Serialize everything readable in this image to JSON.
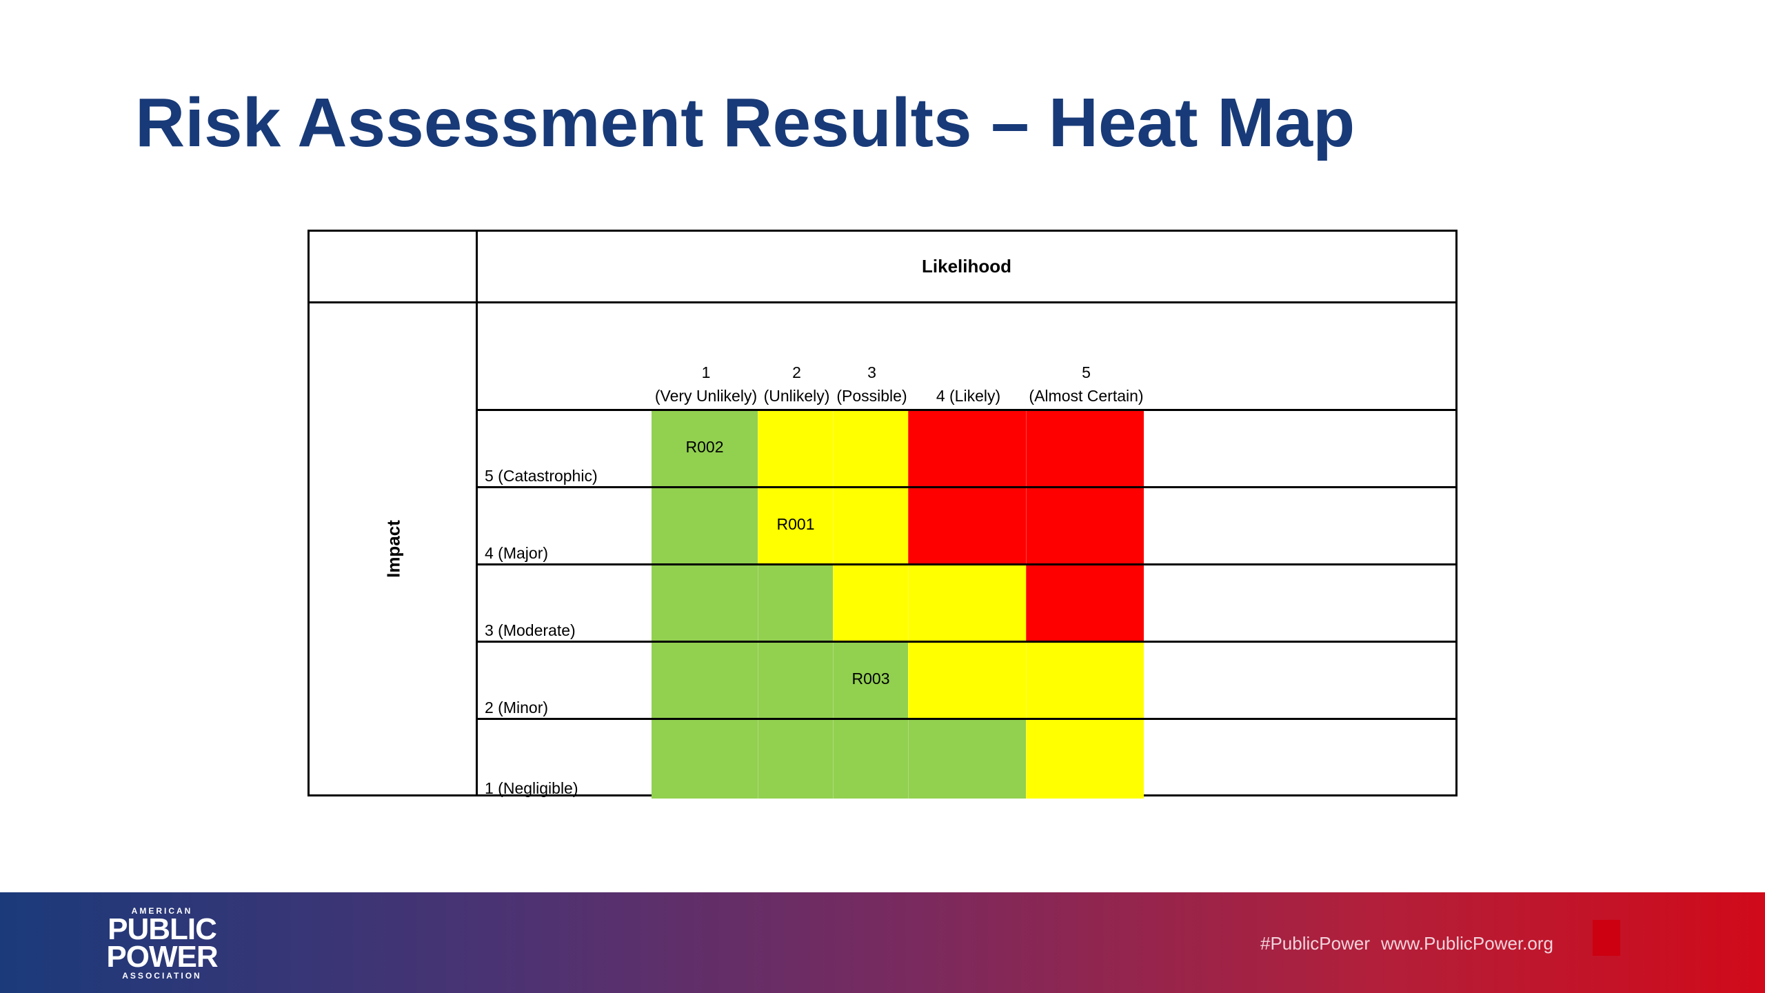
{
  "slide": {
    "title": "Risk Assessment Results – Heat Map"
  },
  "heat_map": {
    "column_axis_label": "Likelihood",
    "row_axis_label": "Impact",
    "columns": [
      {
        "num": "1",
        "desc": "(Very Unlikely)"
      },
      {
        "num": "",
        "desc": "2 (Unlikely)"
      },
      {
        "num": "",
        "desc": "3 (Possible)"
      },
      {
        "num": "",
        "desc": "4 (Likely)"
      },
      {
        "num": "5",
        "desc": "(Almost Certain)"
      }
    ],
    "rows": [
      {
        "label": "5 (Catastrophic)",
        "cells": [
          {
            "color": "green",
            "text": "R002"
          },
          {
            "color": "yellow",
            "text": ""
          },
          {
            "color": "yellow",
            "text": ""
          },
          {
            "color": "red",
            "text": ""
          },
          {
            "color": "red",
            "text": ""
          }
        ]
      },
      {
        "label": "4 (Major)",
        "cells": [
          {
            "color": "green",
            "text": ""
          },
          {
            "color": "yellow",
            "text": "R001"
          },
          {
            "color": "yellow",
            "text": ""
          },
          {
            "color": "red",
            "text": ""
          },
          {
            "color": "red",
            "text": ""
          }
        ]
      },
      {
        "label": "3 (Moderate)",
        "cells": [
          {
            "color": "green",
            "text": ""
          },
          {
            "color": "green",
            "text": ""
          },
          {
            "color": "yellow",
            "text": ""
          },
          {
            "color": "yellow",
            "text": ""
          },
          {
            "color": "red",
            "text": ""
          }
        ]
      },
      {
        "label": "2 (Minor)",
        "cells": [
          {
            "color": "green",
            "text": ""
          },
          {
            "color": "green",
            "text": ""
          },
          {
            "color": "green",
            "text": "R003"
          },
          {
            "color": "yellow",
            "text": ""
          },
          {
            "color": "yellow",
            "text": ""
          }
        ]
      },
      {
        "label": "1 (Negligible)",
        "cells": [
          {
            "color": "green",
            "text": ""
          },
          {
            "color": "green",
            "text": ""
          },
          {
            "color": "green",
            "text": ""
          },
          {
            "color": "green",
            "text": ""
          },
          {
            "color": "yellow",
            "text": ""
          }
        ]
      }
    ],
    "colors": {
      "green": "#92d050",
      "yellow": "#ffff00",
      "red": "#ff0000"
    }
  },
  "footer": {
    "logo_top": "AMERICAN",
    "logo_line1": "PUBLIC",
    "logo_line2": "POWER",
    "logo_bottom": "ASSOCIATION",
    "hashtag": "#PublicPower",
    "url": "www.PublicPower.org"
  }
}
